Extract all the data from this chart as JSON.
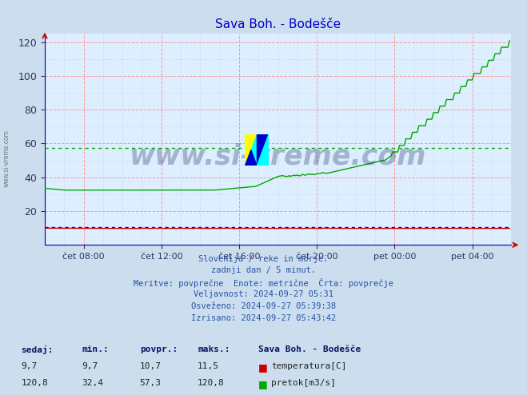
{
  "title": "Sava Boh. - Bodešče",
  "background_color": "#ccdded",
  "plot_bg_color": "#ddeeff",
  "title_color": "#0000cc",
  "ylim": [
    0,
    125
  ],
  "yticks": [
    20,
    40,
    60,
    80,
    100,
    120
  ],
  "xtick_labels": [
    "čet 08:00",
    "čet 12:00",
    "čet 16:00",
    "čet 20:00",
    "pet 00:00",
    "pet 04:00"
  ],
  "xtick_positions": [
    24,
    72,
    120,
    168,
    216,
    264
  ],
  "temp_color": "#cc0000",
  "flow_color": "#00aa00",
  "avg_flow_color": "#00aa00",
  "avg_temp_color": "#0000cc",
  "avg_flow": 57.3,
  "avg_temp": 10.7,
  "watermark_text": "www.si-vreme.com",
  "info_lines": [
    "Slovenija / reke in morje.",
    "zadnji dan / 5 minut.",
    "Meritve: povprečne  Enote: metrične  Črta: povprečje",
    "Veljavnost: 2024-09-27 05:31",
    "Osveženo: 2024-09-27 05:39:38",
    "Izrisano: 2024-09-27 05:43:42"
  ],
  "table_headers": [
    "sedaj:",
    "min.:",
    "povpr.:",
    "maks.:"
  ],
  "table_row1": [
    "9,7",
    "9,7",
    "10,7",
    "11,5"
  ],
  "table_row2": [
    "120,8",
    "32,4",
    "57,3",
    "120,8"
  ],
  "legend_labels": [
    "temperatura[C]",
    "pretok[m3/s]"
  ],
  "station_label": "Sava Boh. - Bodešče",
  "n_points": 288,
  "left_label": "www.si-vreme.com"
}
